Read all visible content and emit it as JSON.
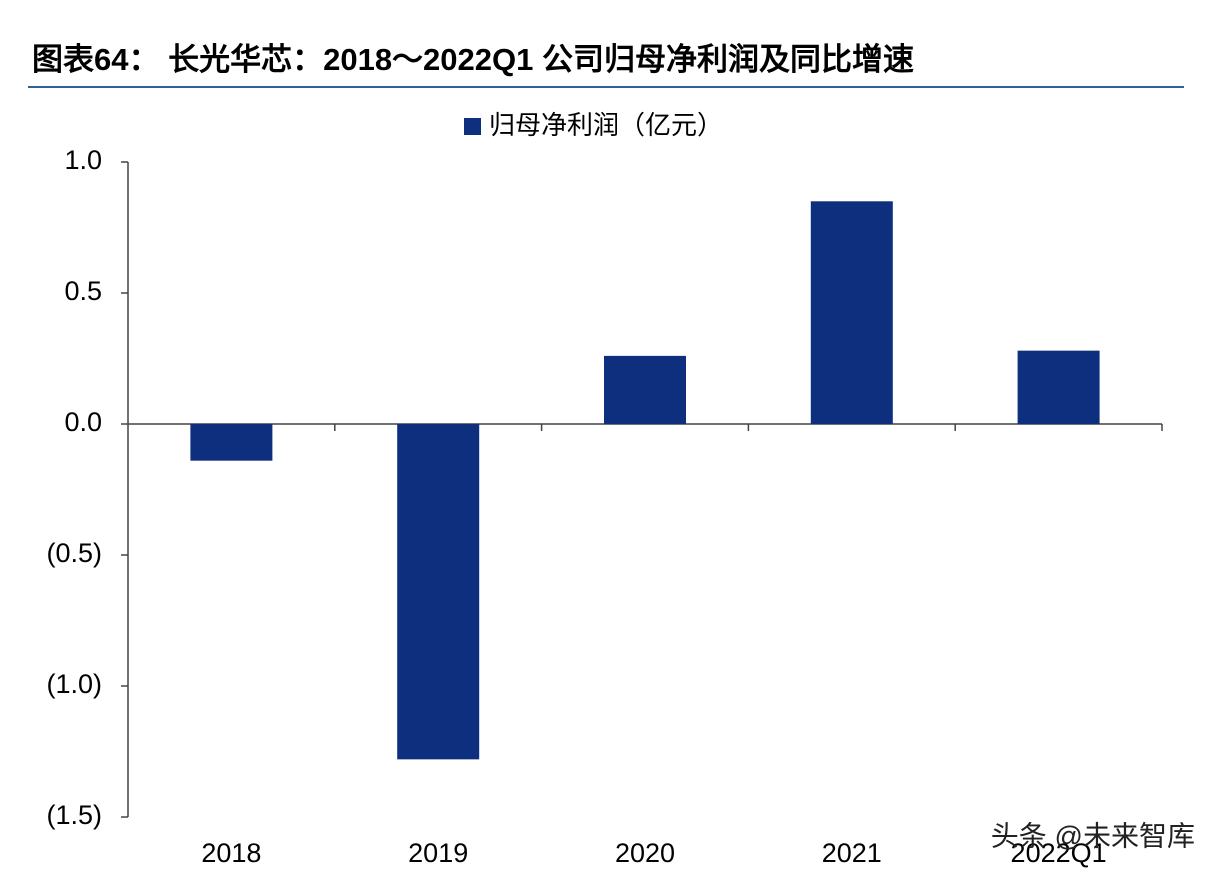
{
  "chart_data": {
    "type": "bar",
    "title": "图表64： 长光华芯：2018～2022Q1 公司归母净利润及同比增速",
    "categories": [
      "2018",
      "2019",
      "2020",
      "2021",
      "2022Q1"
    ],
    "series": [
      {
        "name": "归母净利润（亿元）",
        "color": "#0d2f7e",
        "values": [
          -0.14,
          -1.28,
          0.26,
          0.85,
          0.28
        ]
      }
    ],
    "ylim": [
      -1.5,
      1.0
    ],
    "yticks": [
      {
        "value": 1.0,
        "label": "1.0"
      },
      0.5,
      {
        "value": 0,
        "label": "0.0"
      },
      {
        "value": -0.5,
        "label": "(0.5)"
      },
      {
        "value": -1.0,
        "label": "(1.0)"
      },
      {
        "value": -1.5,
        "label": "(1.5)"
      }
    ],
    "legend": "top",
    "watermark": "头条 @未来智库"
  }
}
